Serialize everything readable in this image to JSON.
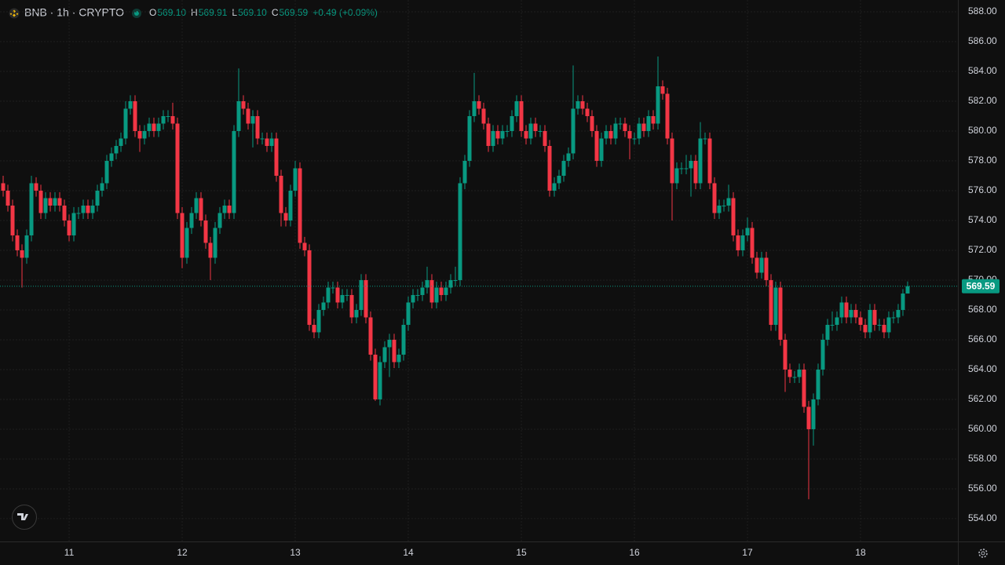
{
  "chart_data": {
    "type": "candlestick",
    "legend": {
      "symbol": "BNB · 1h · CRYPTO",
      "items": [
        {
          "key": "O",
          "value": "569.10"
        },
        {
          "key": "H",
          "value": "569.91"
        },
        {
          "key": "L",
          "value": "569.10"
        },
        {
          "key": "C",
          "value": "569.59"
        }
      ],
      "change": "+0.49 (+0.09%)"
    },
    "up_color": "#089981",
    "down_color": "#f23645",
    "grid": true,
    "last_price": {
      "value": 569.59,
      "label": "569.59"
    },
    "xlim": [
      -0.67,
      202.67
    ],
    "xticks": [
      {
        "value": 14,
        "label": "11"
      },
      {
        "value": 38,
        "label": "12"
      },
      {
        "value": 62,
        "label": "13"
      },
      {
        "value": 86,
        "label": "14"
      },
      {
        "value": 110,
        "label": "15"
      },
      {
        "value": 134,
        "label": "16"
      },
      {
        "value": 158,
        "label": "17"
      },
      {
        "value": 182,
        "label": "18"
      }
    ],
    "ylim": [
      552.47,
      588.79
    ],
    "yticks": [
      {
        "value": 554,
        "label": "554.00"
      },
      {
        "value": 556,
        "label": "556.00"
      },
      {
        "value": 558,
        "label": "558.00"
      },
      {
        "value": 560,
        "label": "560.00"
      },
      {
        "value": 562,
        "label": "562.00"
      },
      {
        "value": 564,
        "label": "564.00"
      },
      {
        "value": 566,
        "label": "566.00"
      },
      {
        "value": 568,
        "label": "568.00"
      },
      {
        "value": 570,
        "label": "570.00"
      },
      {
        "value": 572,
        "label": "572.00"
      },
      {
        "value": 574,
        "label": "574.00"
      },
      {
        "value": 576,
        "label": "576.00"
      },
      {
        "value": 578,
        "label": "578.00"
      },
      {
        "value": 580,
        "label": "580.00"
      },
      {
        "value": 582,
        "label": "582.00"
      },
      {
        "value": 584,
        "label": "584.00"
      },
      {
        "value": 586,
        "label": "586.00"
      },
      {
        "value": 588,
        "label": "588.00"
      }
    ],
    "candles": [
      [
        576.5,
        577,
        575.6,
        576
      ],
      [
        576,
        576.4,
        574.6,
        575
      ],
      [
        575,
        575.4,
        572.6,
        573
      ],
      [
        573,
        573.4,
        571.6,
        572
      ],
      [
        572,
        572.4,
        569.5,
        571.5
      ],
      [
        571.5,
        573.4,
        571.1,
        573
      ],
      [
        573,
        577,
        572.6,
        576.5
      ],
      [
        576.5,
        576.9,
        575.6,
        576
      ],
      [
        576,
        576.4,
        574.1,
        574.5
      ],
      [
        574.5,
        575.9,
        574.1,
        575.5
      ],
      [
        575.5,
        575.9,
        574.6,
        575
      ],
      [
        575,
        575.9,
        574.6,
        575.5
      ],
      [
        575.5,
        575.9,
        574.6,
        575
      ],
      [
        575,
        575.4,
        573.6,
        574
      ],
      [
        574,
        574.4,
        572.6,
        573
      ],
      [
        573,
        574.9,
        572.6,
        574.5
      ],
      [
        574.5,
        574.9,
        574.1,
        574.5
      ],
      [
        574.5,
        575.4,
        574.1,
        575
      ],
      [
        575,
        575.4,
        574.1,
        574.5
      ],
      [
        574.5,
        575.4,
        574.1,
        575
      ],
      [
        575,
        576.4,
        574.6,
        576
      ],
      [
        576,
        576.9,
        575.6,
        576.5
      ],
      [
        576.5,
        578.4,
        576.1,
        578
      ],
      [
        578,
        578.9,
        577.6,
        578.5
      ],
      [
        578.5,
        579.4,
        578.1,
        579
      ],
      [
        579,
        579.9,
        578.6,
        579.5
      ],
      [
        579.5,
        582,
        579.1,
        581.5
      ],
      [
        581.5,
        582.4,
        581.1,
        582
      ],
      [
        582,
        582.4,
        579.6,
        580
      ],
      [
        580,
        580.4,
        578.6,
        579.5
      ],
      [
        579.5,
        580.4,
        579.1,
        580
      ],
      [
        580,
        580.9,
        579.6,
        580.5
      ],
      [
        580.5,
        580.9,
        579.6,
        580
      ],
      [
        580,
        580.9,
        579.6,
        580.5
      ],
      [
        580.5,
        581.4,
        580.1,
        581
      ],
      [
        581,
        581.4,
        580.6,
        581
      ],
      [
        581,
        581.9,
        580.1,
        580.5
      ],
      [
        580.5,
        580.9,
        574.1,
        574.5
      ],
      [
        574.5,
        574.9,
        570.8,
        571.5
      ],
      [
        571.5,
        573.9,
        571.1,
        573.5
      ],
      [
        573.5,
        574.9,
        573.1,
        574.5
      ],
      [
        574.5,
        575.9,
        574.1,
        575.5
      ],
      [
        575.5,
        575.9,
        573.6,
        574
      ],
      [
        574,
        574.4,
        572.1,
        572.5
      ],
      [
        572.5,
        572.9,
        570,
        571.5
      ],
      [
        571.5,
        573.9,
        571.1,
        573.5
      ],
      [
        573.5,
        574.9,
        573.1,
        574.5
      ],
      [
        574.5,
        575.4,
        574.1,
        575
      ],
      [
        575,
        575.4,
        574.1,
        574.5
      ],
      [
        574.5,
        580.4,
        574.1,
        580
      ],
      [
        580,
        584.2,
        579.6,
        582
      ],
      [
        582,
        582.4,
        581.1,
        581.5
      ],
      [
        581.5,
        581.9,
        580.1,
        580.5
      ],
      [
        580.5,
        581.4,
        578.9,
        581
      ],
      [
        581,
        581.4,
        579.1,
        579.5
      ],
      [
        579.5,
        579.9,
        579.1,
        579.5
      ],
      [
        579.5,
        579.9,
        578.6,
        579
      ],
      [
        579,
        579.9,
        578.6,
        579.5
      ],
      [
        579.5,
        579.9,
        576.6,
        577
      ],
      [
        577,
        577.4,
        573.6,
        574.5
      ],
      [
        574.5,
        574.9,
        573.6,
        574
      ],
      [
        574,
        576.4,
        573.6,
        576
      ],
      [
        576,
        578,
        575.6,
        577.5
      ],
      [
        577.5,
        577.9,
        572.1,
        572.5
      ],
      [
        572.5,
        572.9,
        571.6,
        572
      ],
      [
        572,
        572.4,
        566.6,
        567
      ],
      [
        567,
        567.4,
        566.1,
        566.5
      ],
      [
        566.5,
        568.4,
        566.1,
        568
      ],
      [
        568,
        568.9,
        567.6,
        568.5
      ],
      [
        568.5,
        569.9,
        568.1,
        569.5
      ],
      [
        569.5,
        569.9,
        569.1,
        569.5
      ],
      [
        569.5,
        569.9,
        568.1,
        568.5
      ],
      [
        568.5,
        569.4,
        568.1,
        569
      ],
      [
        569,
        569.4,
        568.6,
        569
      ],
      [
        569,
        569.4,
        567.1,
        567.5
      ],
      [
        567.5,
        568.4,
        567.1,
        568
      ],
      [
        568,
        570.4,
        567.6,
        570
      ],
      [
        570,
        570.4,
        567.1,
        567.5
      ],
      [
        567.5,
        567.9,
        564.6,
        565
      ],
      [
        565,
        565.4,
        561.9,
        562
      ],
      [
        562,
        564.9,
        561.6,
        564.5
      ],
      [
        564.5,
        565.9,
        564.1,
        565.5
      ],
      [
        565.5,
        566.4,
        563.5,
        566
      ],
      [
        566,
        566.4,
        564.1,
        564.5
      ],
      [
        564.5,
        565.4,
        564.1,
        565
      ],
      [
        565,
        567.4,
        564.6,
        567
      ],
      [
        567,
        568.9,
        566.6,
        568.5
      ],
      [
        568.5,
        569.4,
        568.1,
        569
      ],
      [
        569,
        569.4,
        568.6,
        569
      ],
      [
        569,
        569.9,
        568.6,
        569.5
      ],
      [
        569.5,
        570.9,
        569.1,
        570
      ],
      [
        570,
        570.4,
        568.1,
        568.5
      ],
      [
        568.5,
        569.9,
        568.1,
        569.5
      ],
      [
        569.5,
        569.9,
        568.6,
        569
      ],
      [
        569,
        569.9,
        568.6,
        569.5
      ],
      [
        569.5,
        570.4,
        569.1,
        570
      ],
      [
        570,
        570.9,
        569.6,
        570
      ],
      [
        570,
        576.9,
        569.6,
        576.5
      ],
      [
        576.5,
        578.4,
        576.1,
        578
      ],
      [
        578,
        581.4,
        577.6,
        581
      ],
      [
        581,
        583.9,
        580.6,
        582
      ],
      [
        582,
        582.4,
        581.1,
        581.5
      ],
      [
        581.5,
        581.9,
        580.1,
        580.5
      ],
      [
        580.5,
        580.9,
        578.6,
        579
      ],
      [
        579,
        580.4,
        578.6,
        580
      ],
      [
        580,
        580.4,
        579.1,
        579.5
      ],
      [
        579.5,
        580.4,
        579.1,
        580
      ],
      [
        580,
        580.4,
        579.6,
        580
      ],
      [
        580,
        581.4,
        579.6,
        581
      ],
      [
        581,
        582.4,
        580.6,
        582
      ],
      [
        582,
        582.4,
        579.6,
        580
      ],
      [
        580,
        580.4,
        579.1,
        579.5
      ],
      [
        579.5,
        580.9,
        579.1,
        580.5
      ],
      [
        580.5,
        580.9,
        579.6,
        580
      ],
      [
        580,
        580.4,
        579.6,
        580
      ],
      [
        580,
        580.4,
        578.6,
        579
      ],
      [
        579,
        579.4,
        575.6,
        576
      ],
      [
        576,
        576.9,
        575.6,
        576.5
      ],
      [
        576.5,
        577.4,
        576.1,
        577
      ],
      [
        577,
        578.4,
        576.6,
        578
      ],
      [
        578,
        578.9,
        577.6,
        578.5
      ],
      [
        578.5,
        584.4,
        578.1,
        581.5
      ],
      [
        581.5,
        582.4,
        581.1,
        582
      ],
      [
        582,
        582.4,
        581.1,
        581.5
      ],
      [
        581.5,
        581.9,
        580.6,
        581
      ],
      [
        581,
        581.4,
        579.6,
        580
      ],
      [
        580,
        580.4,
        577.6,
        578
      ],
      [
        578,
        579.9,
        577.6,
        579.5
      ],
      [
        579.5,
        580.4,
        579.1,
        580
      ],
      [
        580,
        580.4,
        579.1,
        579.5
      ],
      [
        579.5,
        580.9,
        579.1,
        580.5
      ],
      [
        580.5,
        580.9,
        580.1,
        580.5
      ],
      [
        580.5,
        580.9,
        579.6,
        580
      ],
      [
        580,
        580.4,
        578.1,
        579.5
      ],
      [
        579.5,
        579.9,
        579.1,
        579.5
      ],
      [
        579.5,
        580.9,
        579.1,
        580.5
      ],
      [
        580.5,
        580.9,
        579.6,
        580
      ],
      [
        580,
        581.4,
        579.6,
        581
      ],
      [
        581,
        581.4,
        580.1,
        580.5
      ],
      [
        580.5,
        585,
        580.1,
        583
      ],
      [
        583,
        583.4,
        582.1,
        582.5
      ],
      [
        582.5,
        582.9,
        579.1,
        579.5
      ],
      [
        579.5,
        579.9,
        574,
        576.5
      ],
      [
        576.5,
        577.9,
        576.1,
        577.5
      ],
      [
        577.5,
        577.9,
        577.1,
        577.5
      ],
      [
        577.5,
        578.4,
        577.1,
        577.5
      ],
      [
        577.5,
        578.4,
        575.6,
        578
      ],
      [
        578,
        578.4,
        576.1,
        576.5
      ],
      [
        576.5,
        580.6,
        576.1,
        579.5
      ],
      [
        579.5,
        579.9,
        579.1,
        579.5
      ],
      [
        579.5,
        579.9,
        576.1,
        576.5
      ],
      [
        576.5,
        576.9,
        574.1,
        574.5
      ],
      [
        574.5,
        575.4,
        574.1,
        575
      ],
      [
        575,
        575.4,
        574.6,
        575
      ],
      [
        575,
        576.4,
        574.6,
        575.5
      ],
      [
        575.5,
        575.9,
        572.6,
        573
      ],
      [
        573,
        573.4,
        571.6,
        572
      ],
      [
        572,
        573.4,
        571.6,
        573
      ],
      [
        573,
        574.2,
        572.6,
        573.5
      ],
      [
        573.5,
        573.9,
        571.1,
        571.5
      ],
      [
        571.5,
        571.9,
        570.1,
        570.5
      ],
      [
        570.5,
        571.9,
        570.1,
        571.5
      ],
      [
        571.5,
        571.9,
        569.6,
        570
      ],
      [
        570,
        570.4,
        566.6,
        567
      ],
      [
        567,
        569.9,
        566.6,
        569.5
      ],
      [
        569.5,
        569.9,
        565.6,
        566
      ],
      [
        566,
        566.4,
        562.5,
        564
      ],
      [
        564,
        564.4,
        563.1,
        563.5
      ],
      [
        563.5,
        563.9,
        563.1,
        563.5
      ],
      [
        563.5,
        564.4,
        563.1,
        564
      ],
      [
        564,
        564.4,
        561.1,
        561.5
      ],
      [
        561.5,
        561.9,
        555.3,
        560
      ],
      [
        560,
        562.4,
        558.9,
        562
      ],
      [
        562,
        564.4,
        561.6,
        564
      ],
      [
        564,
        566.4,
        563.6,
        566
      ],
      [
        566,
        567.4,
        565.6,
        567
      ],
      [
        567,
        567.9,
        566.6,
        567
      ],
      [
        567,
        567.9,
        566.6,
        567.5
      ],
      [
        567.5,
        568.9,
        567.1,
        568.5
      ],
      [
        568.5,
        568.9,
        567.1,
        567.5
      ],
      [
        567.5,
        568.4,
        567.1,
        568
      ],
      [
        568,
        568.4,
        567.1,
        567.5
      ],
      [
        567.5,
        567.9,
        566.6,
        567
      ],
      [
        567,
        567.4,
        566.1,
        566.5
      ],
      [
        566.5,
        568.4,
        566.1,
        568
      ],
      [
        568,
        568.4,
        566.6,
        567
      ],
      [
        567,
        567.4,
        566.6,
        567
      ],
      [
        567,
        567.4,
        566.1,
        566.5
      ],
      [
        566.5,
        567.9,
        566.1,
        567.5
      ],
      [
        567.5,
        567.9,
        567.1,
        567.5
      ],
      [
        567.5,
        568.4,
        567.1,
        568
      ],
      [
        568,
        569.4,
        567.6,
        569.1
      ],
      [
        569.1,
        569.91,
        569.1,
        569.59
      ]
    ]
  }
}
